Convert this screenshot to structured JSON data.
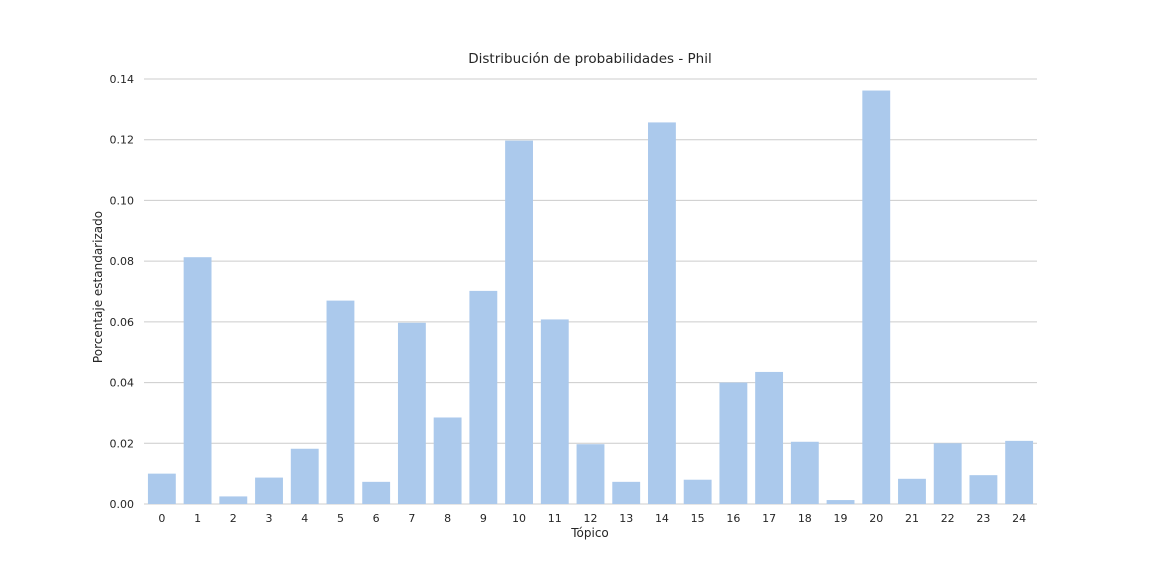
{
  "chart_data": {
    "type": "bar",
    "title": "Distribución de probabilidades - Phil",
    "xlabel": "Tópico",
    "ylabel": "Porcentaje estandarizado",
    "categories": [
      "0",
      "1",
      "2",
      "3",
      "4",
      "5",
      "6",
      "7",
      "8",
      "9",
      "10",
      "11",
      "12",
      "13",
      "14",
      "15",
      "16",
      "17",
      "18",
      "19",
      "20",
      "21",
      "22",
      "23",
      "24"
    ],
    "values": [
      0.01,
      0.0813,
      0.0025,
      0.0087,
      0.0182,
      0.067,
      0.0073,
      0.0597,
      0.0285,
      0.0702,
      0.1197,
      0.0608,
      0.0197,
      0.0073,
      0.1257,
      0.008,
      0.04,
      0.0435,
      0.0205,
      0.0013,
      0.1362,
      0.0083,
      0.02,
      0.0095,
      0.0208
    ],
    "yticks": [
      "0.00",
      "0.02",
      "0.04",
      "0.06",
      "0.08",
      "0.10",
      "0.12",
      "0.14"
    ],
    "ylim": [
      0,
      0.14
    ],
    "grid": true,
    "bar_color": "#abc9ec",
    "grid_color": "#cccccc"
  }
}
